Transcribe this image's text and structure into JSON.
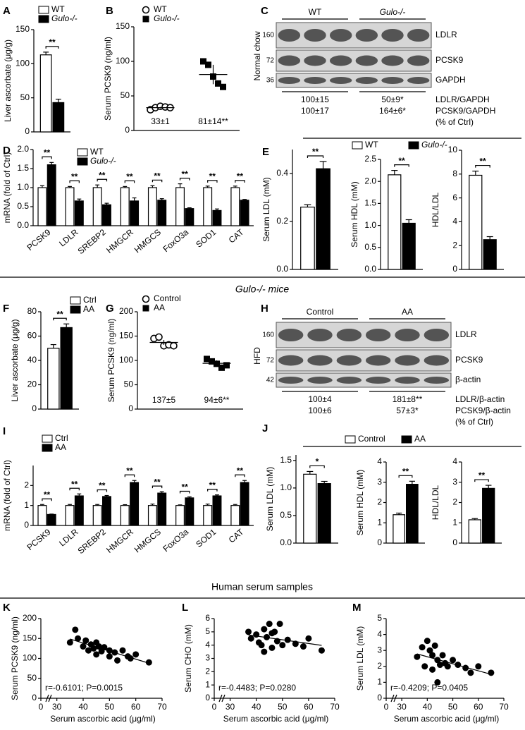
{
  "section_titles": [
    "Gulo-/- mice",
    "Human serum samples"
  ],
  "blots": [
    {
      "panel": "C",
      "side_label": "Normal chow",
      "groups": [
        "WT",
        "Gulo-/-"
      ],
      "rows": [
        {
          "mw": "160",
          "label": "LDLR"
        },
        {
          "mw": "72",
          "label": "PCSK9"
        },
        {
          "mw": "36",
          "label": "GAPDH"
        }
      ],
      "quant": [
        [
          "100±15",
          "50±9*",
          "LDLR/GAPDH"
        ],
        [
          "100±17",
          "164±6*",
          "PCSK9/GAPDH"
        ]
      ],
      "note": "(% of Ctrl)"
    },
    {
      "panel": "H",
      "side_label": "HFD",
      "groups": [
        "Control",
        "AA"
      ],
      "rows": [
        {
          "mw": "160",
          "label": "LDLR"
        },
        {
          "mw": "72",
          "label": "PCSK9"
        },
        {
          "mw": "42",
          "label": "β-actin"
        }
      ],
      "quant": [
        [
          "100±4",
          "181±8**",
          "LDLR/β-actin"
        ],
        [
          "100±6",
          "57±3*",
          "PCSK9/β-actin"
        ]
      ],
      "note": "(% of Ctrl)"
    }
  ],
  "chart_data": [
    {
      "type": "bar",
      "panel": "A",
      "series": [
        {
          "name": "WT",
          "color": "#ffffff"
        },
        {
          "name": "Gulo-/-",
          "color": "#000000"
        }
      ],
      "subplots": [
        {
          "ylabel": "Liver ascorbate (μg/g)",
          "ylim": [
            0,
            150
          ],
          "yticks": [
            0,
            50,
            100,
            150
          ],
          "values": [
            [
              113
            ],
            [
              43
            ]
          ],
          "errors": [
            [
              4
            ],
            [
              5
            ]
          ],
          "significance": [
            "**"
          ]
        }
      ]
    },
    {
      "type": "strip",
      "panel": "B",
      "ylabel": "Serum PCSK9 (ng/ml)",
      "ylim": [
        0,
        150
      ],
      "yticks": [
        0,
        50,
        100,
        150
      ],
      "series": [
        {
          "name": "WT",
          "marker": "circle",
          "color": "#000000",
          "mean": 33,
          "error": 1,
          "points": [
            30,
            33,
            35,
            34,
            33
          ],
          "value_label": "33±1"
        },
        {
          "name": "Gulo-/-",
          "marker": "square",
          "color": "#000000",
          "mean": 81,
          "error": 14,
          "points": [
            100,
            95,
            78,
            68,
            63
          ],
          "value_label": "81±14**"
        }
      ]
    },
    {
      "type": "bar",
      "panel": "D",
      "series": [
        {
          "name": "WT",
          "color": "#ffffff"
        },
        {
          "name": "Gulo-/-",
          "color": "#000000"
        }
      ],
      "subplots": [
        {
          "ylabel": "mRNA (fold of Ctrl)",
          "ylim": [
            0,
            2
          ],
          "yticks": [
            {
              "value": 0,
              "label": "0.0"
            },
            0.5,
            {
              "value": 1,
              "label": "1.0"
            },
            1.5,
            {
              "value": 2,
              "label": "2.0"
            }
          ],
          "categories": [
            "PCSK9",
            "LDLR",
            "SREBP2",
            "HMGCR",
            "HMGCS",
            "FoxO3a",
            "SOD1",
            "CAT"
          ],
          "values": [
            [
              1.0,
              1.0,
              1.0,
              1.0,
              1.0,
              1.0,
              1.0,
              1.0
            ],
            [
              1.6,
              0.65,
              0.55,
              0.65,
              0.67,
              0.45,
              0.4,
              0.67
            ]
          ],
          "errors": [
            [
              0.05,
              0.03,
              0.07,
              0.03,
              0.05,
              0.1,
              0.04,
              0.04
            ],
            [
              0.06,
              0.05,
              0.04,
              0.08,
              0.04,
              0.02,
              0.04,
              0.02
            ]
          ],
          "significance": [
            "**",
            "**",
            "**",
            "**",
            "**",
            "**",
            "**",
            "**"
          ]
        }
      ]
    },
    {
      "type": "bar",
      "panel": "E",
      "series": [
        {
          "name": "WT",
          "color": "#ffffff"
        },
        {
          "name": "Gulo-/-",
          "color": "#000000"
        }
      ],
      "subplots": [
        {
          "ylabel": "Serum LDL (mM)",
          "ylim": [
            0,
            0.5
          ],
          "yticks": [
            {
              "value": 0,
              "label": "0.0"
            },
            0.2,
            0.4
          ],
          "values": [
            [
              0.26
            ],
            [
              0.42
            ]
          ],
          "errors": [
            [
              0.01
            ],
            [
              0.03
            ]
          ],
          "significance": [
            "**"
          ]
        },
        {
          "ylabel": "Serum HDL (mM)",
          "ylim": [
            0,
            2.5
          ],
          "yticks": [
            {
              "value": 0,
              "label": "0.0"
            },
            0.5,
            {
              "value": 1,
              "label": "1.0"
            },
            1.5,
            {
              "value": 2,
              "label": "2.0"
            },
            2.5
          ],
          "values": [
            [
              2.15
            ],
            [
              1.05
            ]
          ],
          "errors": [
            [
              0.1
            ],
            [
              0.08
            ]
          ],
          "significance": [
            "**"
          ]
        },
        {
          "ylabel": "HDL/LDL",
          "ylim": [
            0,
            10
          ],
          "yticks": [
            0,
            2,
            4,
            6,
            8,
            10
          ],
          "values": [
            [
              7.9
            ],
            [
              2.5
            ]
          ],
          "errors": [
            [
              0.35
            ],
            [
              0.25
            ]
          ],
          "significance": [
            "**"
          ]
        }
      ]
    },
    {
      "type": "bar",
      "panel": "F",
      "series": [
        {
          "name": "Ctrl",
          "color": "#ffffff"
        },
        {
          "name": "AA",
          "color": "#000000"
        }
      ],
      "subplots": [
        {
          "ylabel": "Liver ascorbate (μg/g)",
          "ylim": [
            0,
            80
          ],
          "yticks": [
            0,
            20,
            40,
            60,
            80
          ],
          "values": [
            [
              50
            ],
            [
              67
            ]
          ],
          "errors": [
            [
              3
            ],
            [
              3
            ]
          ],
          "significance": [
            "**"
          ]
        }
      ]
    },
    {
      "type": "strip",
      "panel": "G",
      "ylabel": "Serum PCSK9 (ng/ml)",
      "ylim": [
        0,
        200
      ],
      "yticks": [
        0,
        50,
        100,
        150,
        200
      ],
      "series": [
        {
          "name": "Control",
          "marker": "circle",
          "color": "#000000",
          "mean": 137,
          "error": 5,
          "points": [
            145,
            148,
            130,
            132,
            130
          ],
          "value_label": "137±5"
        },
        {
          "name": "AA",
          "marker": "square",
          "color": "#000000",
          "mean": 94,
          "error": 6,
          "points": [
            103,
            98,
            93,
            85,
            90
          ],
          "value_label": "94±6**"
        }
      ]
    },
    {
      "type": "bar",
      "panel": "I",
      "series": [
        {
          "name": "Ctrl",
          "color": "#ffffff"
        },
        {
          "name": "AA",
          "color": "#000000"
        }
      ],
      "subplots": [
        {
          "ylabel": "mRNA (fold of Ctrl)",
          "ylim": [
            0,
            3
          ],
          "yticks": [
            0,
            1,
            2
          ],
          "categories": [
            "PCSK9",
            "LDLR",
            "SREBP2",
            "HMGCR",
            "HMGCS",
            "FoxO3a",
            "SOD1",
            "CAT"
          ],
          "values": [
            [
              1.0,
              1.0,
              1.0,
              1.0,
              1.0,
              1.0,
              1.0,
              1.0
            ],
            [
              0.55,
              1.48,
              1.45,
              2.15,
              1.62,
              1.38,
              1.48,
              2.15
            ]
          ],
          "errors": [
            [
              0.05,
              0.05,
              0.05,
              0.04,
              0.07,
              0.03,
              0.07,
              0.05
            ],
            [
              0.02,
              0.1,
              0.05,
              0.1,
              0.07,
              0.05,
              0.05,
              0.1
            ]
          ],
          "significance": [
            "**",
            "**",
            "**",
            "**",
            "**",
            "**",
            "**",
            "**"
          ]
        }
      ]
    },
    {
      "type": "bar",
      "panel": "J",
      "series": [
        {
          "name": "Control",
          "color": "#ffffff"
        },
        {
          "name": "AA",
          "color": "#000000"
        }
      ],
      "subplots": [
        {
          "ylabel": "Serum LDL (mM)",
          "ylim": [
            0,
            1.6
          ],
          "yticks": [
            {
              "value": 0,
              "label": "0.0"
            },
            0.5,
            {
              "value": 1,
              "label": "1.0"
            },
            1.5
          ],
          "values": [
            [
              1.25
            ],
            [
              1.08
            ]
          ],
          "errors": [
            [
              0.05
            ],
            [
              0.04
            ]
          ],
          "significance": [
            "*"
          ]
        },
        {
          "ylabel": "Serum HDL (mM)",
          "ylim": [
            0,
            4
          ],
          "yticks": [
            0,
            1,
            2,
            3,
            4
          ],
          "values": [
            [
              1.4
            ],
            [
              2.9
            ]
          ],
          "errors": [
            [
              0.08
            ],
            [
              0.15
            ]
          ],
          "significance": [
            "**"
          ]
        },
        {
          "ylabel": "HDL/LDL",
          "ylim": [
            0,
            4
          ],
          "yticks": [
            0,
            1,
            2,
            3,
            4
          ],
          "values": [
            [
              1.15
            ],
            [
              2.7
            ]
          ],
          "errors": [
            [
              0.06
            ],
            [
              0.15
            ]
          ],
          "significance": [
            "**"
          ]
        }
      ]
    },
    {
      "type": "scatter",
      "panel": "K",
      "ylabel": "Serum PCSK9 (ng/ml)",
      "xlabel": "Serum ascorbic acid (μg/ml)",
      "xlim": [
        25,
        70
      ],
      "xticks": [
        0,
        30,
        40,
        50,
        60,
        70
      ],
      "axis_break": true,
      "ylim": [
        0,
        200
      ],
      "yticks": [
        0,
        50,
        100,
        150,
        200
      ],
      "annotation": "r=-0.6101; P=0.0015",
      "color": "#000000",
      "x": [
        37,
        35,
        38,
        40,
        41,
        42,
        43,
        44,
        45,
        45,
        46,
        47,
        48,
        50,
        50,
        52,
        53,
        55,
        57,
        58,
        60,
        65
      ],
      "y": [
        172,
        140,
        150,
        130,
        145,
        120,
        135,
        125,
        110,
        140,
        130,
        118,
        128,
        120,
        105,
        115,
        95,
        120,
        105,
        100,
        110,
        90
      ]
    },
    {
      "type": "scatter",
      "panel": "L",
      "ylabel": "Serum CHO (mM)",
      "xlabel": "Serum ascorbic acid (μg/ml)",
      "xlim": [
        25,
        70
      ],
      "xticks": [
        0,
        30,
        40,
        50,
        60,
        70
      ],
      "axis_break": true,
      "ylim": [
        0,
        6
      ],
      "yticks": [
        0,
        1,
        2,
        3,
        4,
        5,
        6
      ],
      "annotation": "r=-0.4483; P=0.0280",
      "color": "#000000",
      "x": [
        37,
        38,
        40,
        41,
        42,
        43,
        43,
        44,
        45,
        46,
        46,
        47,
        48,
        49,
        50,
        52,
        55,
        58,
        60,
        65
      ],
      "y": [
        5.0,
        4.5,
        4.8,
        4.2,
        4.0,
        5.2,
        3.5,
        4.6,
        5.6,
        4.9,
        3.8,
        5.0,
        4.3,
        5.6,
        4.0,
        4.4,
        4.1,
        3.9,
        4.5,
        3.6
      ]
    },
    {
      "type": "scatter",
      "panel": "M",
      "ylabel": "Serum LDL (mM)",
      "xlabel": "Serum ascorbic acid (μg/ml)",
      "xlim": [
        25,
        70
      ],
      "xticks": [
        0,
        30,
        40,
        50,
        60,
        70
      ],
      "axis_break": true,
      "ylim": [
        0,
        5
      ],
      "yticks": [
        0,
        1,
        2,
        3,
        4,
        5
      ],
      "annotation": "r=-0.4209; P=0.0405",
      "color": "#000000",
      "x": [
        36,
        38,
        39,
        40,
        41,
        42,
        42,
        43,
        44,
        44,
        45,
        46,
        47,
        48,
        50,
        52,
        55,
        57,
        60,
        65
      ],
      "y": [
        2.6,
        3.2,
        2.0,
        3.6,
        3.0,
        2.7,
        1.8,
        3.3,
        2.4,
        1.0,
        2.1,
        2.7,
        2.2,
        2.0,
        2.4,
        2.1,
        1.9,
        1.6,
        2.0,
        1.6
      ]
    }
  ]
}
